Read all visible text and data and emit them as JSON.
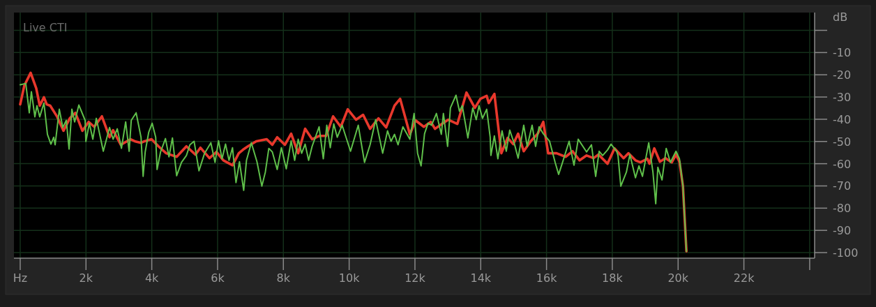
{
  "chart_data": {
    "type": "line",
    "title": "Live CTI",
    "ylabel": "dB",
    "xlim": [
      -190,
      24150
    ],
    "ylim": [
      -102.5,
      8
    ],
    "xticks": [
      {
        "value": 0,
        "label": "Hz"
      },
      {
        "value": 2000,
        "label": "2k"
      },
      {
        "value": 4000,
        "label": "4k"
      },
      {
        "value": 6000,
        "label": "6k"
      },
      {
        "value": 8000,
        "label": "8k"
      },
      {
        "value": 10000,
        "label": "10k"
      },
      {
        "value": 12000,
        "label": "12k"
      },
      {
        "value": 14000,
        "label": "14k"
      },
      {
        "value": 16000,
        "label": "16k"
      },
      {
        "value": 18000,
        "label": "18k"
      },
      {
        "value": 20000,
        "label": "20k"
      },
      {
        "value": 22000,
        "label": "22k"
      },
      {
        "value": 24000,
        "label": null
      }
    ],
    "yticks": [
      {
        "value": 0,
        "label": null
      },
      -10,
      -20,
      -30,
      -40,
      -50,
      -60,
      -70,
      -80,
      -90,
      -100
    ],
    "grid": true,
    "line_style": "solid",
    "marker": "none",
    "series": [
      {
        "color": "#e8382c",
        "x": [
          0,
          127,
          318,
          488,
          594,
          722,
          807,
          913,
          1125,
          1316,
          1507,
          1677,
          1890,
          2081,
          2250,
          2484,
          2717,
          2824,
          3057,
          3354,
          3482,
          3673,
          3779,
          3992,
          4204,
          4437,
          4756,
          5053,
          5329,
          5478,
          5754,
          5966,
          6178,
          6454,
          6645,
          6773,
          6921,
          7176,
          7494,
          7664,
          7813,
          8046,
          8237,
          8450,
          8662,
          8874,
          9086,
          9299,
          9511,
          9745,
          9957,
          10212,
          10424,
          10636,
          10891,
          11125,
          11379,
          11549,
          11846,
          12016,
          12271,
          12483,
          12610,
          12823,
          13014,
          13290,
          13566,
          13821,
          13990,
          14181,
          14245,
          14415,
          14627,
          14818,
          14988,
          15137,
          15307,
          15519,
          15731,
          15901,
          16050,
          16305,
          16581,
          16793,
          17005,
          17218,
          17430,
          17579,
          17855,
          18067,
          18343,
          18492,
          18704,
          18853,
          19065,
          19129,
          19277,
          19447,
          19617,
          19808,
          19935,
          20041,
          20147,
          20253
        ],
        "values": [
          -33.3,
          -24.8,
          -19.1,
          -26.1,
          -33.9,
          -30.1,
          -33.3,
          -33.9,
          -38.9,
          -45.2,
          -39.6,
          -37.1,
          -45.2,
          -41.2,
          -43.4,
          -38.7,
          -48.1,
          -44.9,
          -51.5,
          -49,
          -49.9,
          -50.6,
          -49.9,
          -49,
          -52.2,
          -55.3,
          -56.9,
          -52.2,
          -55.9,
          -52.8,
          -57.5,
          -54.7,
          -58.5,
          -60.7,
          -55.3,
          -53.7,
          -52.2,
          -49.9,
          -49,
          -51.5,
          -48.1,
          -51.5,
          -46.5,
          -55.3,
          -44.3,
          -49,
          -47.5,
          -47.5,
          -38.7,
          -43.4,
          -35.5,
          -40.2,
          -38,
          -44.3,
          -39.6,
          -43.7,
          -33.9,
          -30.8,
          -46.8,
          -40.5,
          -43.4,
          -41.2,
          -44.3,
          -42.1,
          -40.2,
          -42.1,
          -28,
          -34.9,
          -30.8,
          -29.5,
          -32.7,
          -28.6,
          -55.3,
          -48.4,
          -51.2,
          -46.5,
          -54.4,
          -49.9,
          -46.5,
          -41.2,
          -55.3,
          -55.3,
          -56.9,
          -54.4,
          -58.5,
          -56.3,
          -57.5,
          -55.9,
          -60,
          -53.1,
          -57.5,
          -55.3,
          -58.5,
          -59.4,
          -57.8,
          -60,
          -53.1,
          -59.1,
          -57.5,
          -59.4,
          -55.9,
          -59.1,
          -70.1,
          -99.4
        ]
      },
      {
        "color": "#5fbf4a",
        "x": [
          0,
          170,
          276,
          340,
          446,
          510,
          594,
          722,
          828,
          934,
          1019,
          1062,
          1189,
          1295,
          1401,
          1486,
          1571,
          1656,
          1783,
          1974,
          1996,
          2102,
          2208,
          2314,
          2526,
          2717,
          2824,
          2951,
          3078,
          3206,
          3312,
          3376,
          3524,
          3673,
          3737,
          3800,
          3906,
          4012,
          4119,
          4161,
          4267,
          4416,
          4522,
          4628,
          4756,
          4904,
          5053,
          5159,
          5286,
          5435,
          5605,
          5796,
          5923,
          6029,
          6136,
          6242,
          6348,
          6454,
          6560,
          6666,
          6794,
          6879,
          7027,
          7197,
          7346,
          7452,
          7558,
          7664,
          7813,
          7940,
          8089,
          8237,
          8344,
          8450,
          8556,
          8662,
          8768,
          8874,
          9086,
          9214,
          9320,
          9426,
          9532,
          9638,
          9787,
          10042,
          10276,
          10467,
          10636,
          10806,
          11019,
          11167,
          11273,
          11379,
          11486,
          11634,
          11846,
          11974,
          12080,
          12186,
          12292,
          12398,
          12504,
          12653,
          12802,
          12865,
          12993,
          13078,
          13248,
          13354,
          13439,
          13609,
          13757,
          13863,
          13948,
          14054,
          14181,
          14287,
          14309,
          14415,
          14521,
          14648,
          14776,
          14882,
          15031,
          15137,
          15307,
          15413,
          15562,
          15668,
          15774,
          15901,
          16093,
          16262,
          16368,
          16474,
          16687,
          16835,
          16963,
          17218,
          17366,
          17494,
          17600,
          17706,
          17855,
          17961,
          18131,
          18173,
          18258,
          18428,
          18534,
          18704,
          18810,
          18916,
          19107,
          19235,
          19320,
          19384,
          19511,
          19638,
          19766,
          19935,
          20041,
          20147,
          20253
        ],
        "values": [
          -24.5,
          -23.9,
          -37.1,
          -27.6,
          -38.9,
          -33.9,
          -38.9,
          -32.7,
          -46.8,
          -51.2,
          -48.1,
          -51.5,
          -35.5,
          -43.7,
          -40.5,
          -53.4,
          -35.5,
          -41.2,
          -33.6,
          -40.5,
          -50,
          -41.8,
          -49,
          -39.6,
          -54.4,
          -43.7,
          -49,
          -44.3,
          -53.1,
          -41.2,
          -54.4,
          -40.5,
          -37.1,
          -48.1,
          -65.7,
          -54.7,
          -45.9,
          -41.8,
          -48.1,
          -62.6,
          -54.7,
          -48.7,
          -56.9,
          -48.4,
          -65.4,
          -59.4,
          -56.3,
          -51.5,
          -49.9,
          -63.2,
          -55.3,
          -50.6,
          -59.4,
          -49.7,
          -57.8,
          -51.2,
          -58.5,
          -52.8,
          -68.5,
          -59.1,
          -72,
          -58.5,
          -50.6,
          -59.1,
          -70.1,
          -63.8,
          -53.1,
          -54.7,
          -62.6,
          -52.8,
          -62.3,
          -49.7,
          -58.5,
          -49,
          -55.3,
          -51.2,
          -58.5,
          -52.2,
          -43.4,
          -57.8,
          -42.7,
          -52.8,
          -42.1,
          -48.1,
          -42.7,
          -54.4,
          -42.7,
          -59.4,
          -51.5,
          -40.2,
          -55.3,
          -45.2,
          -49.9,
          -46.8,
          -51.5,
          -43.4,
          -49,
          -37.4,
          -55.3,
          -61,
          -46.5,
          -41.8,
          -42.7,
          -37.4,
          -46.8,
          -37.4,
          -52.2,
          -34.9,
          -29.2,
          -36.4,
          -33.9,
          -48.4,
          -34.9,
          -40.2,
          -33.9,
          -39.6,
          -35.5,
          -48.1,
          -56.3,
          -47.5,
          -57.8,
          -45.2,
          -54.4,
          -44.9,
          -51.5,
          -57.5,
          -42.7,
          -52.2,
          -42.7,
          -52.2,
          -43.4,
          -46.5,
          -49.9,
          -59.4,
          -64.8,
          -60,
          -49.9,
          -60.7,
          -49,
          -54.7,
          -51.5,
          -65.7,
          -54.4,
          -56.3,
          -53.8,
          -51.2,
          -54.4,
          -56.3,
          -70.1,
          -63.8,
          -55.9,
          -66.3,
          -61,
          -65.7,
          -50.6,
          -63.8,
          -78,
          -61.6,
          -67.3,
          -53.1,
          -59.4,
          -54.4,
          -57.8,
          -70.1,
          -99.4
        ]
      }
    ]
  }
}
